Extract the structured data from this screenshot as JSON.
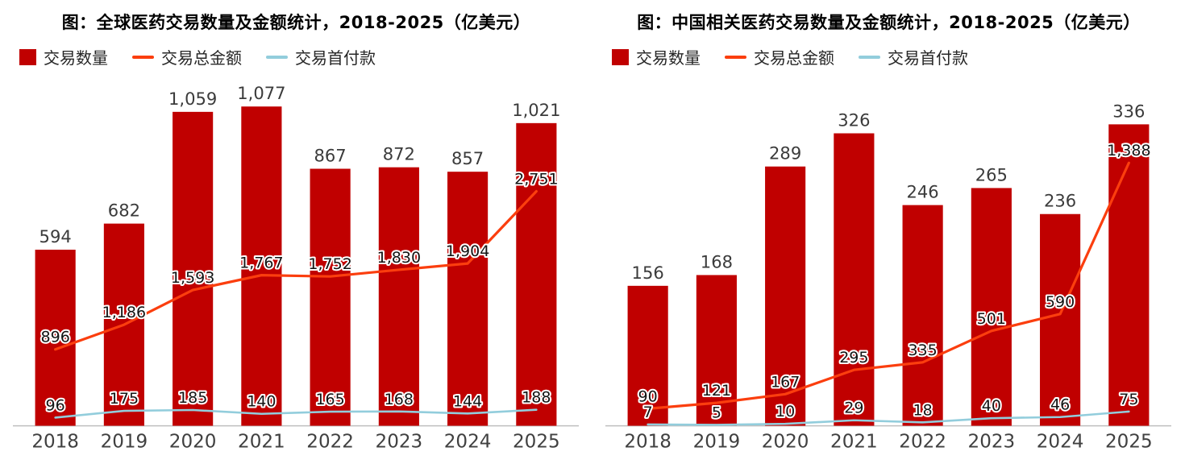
{
  "figure": {
    "background": "#ffffff"
  },
  "chart_data": [
    {
      "type": "bar-line-combo",
      "title": "图：全球医药交易数量及金额统计，2018-2025（亿美元）",
      "categories": [
        "2018",
        "2019",
        "2020",
        "2021",
        "2022",
        "2023",
        "2024",
        "2025"
      ],
      "series": [
        {
          "name": "交易数量",
          "type": "bar",
          "color": "#C00000",
          "values": [
            594,
            682,
            1059,
            1077,
            867,
            872,
            857,
            1021
          ]
        },
        {
          "name": "交易总金额",
          "type": "line",
          "color": "#FB3E0E",
          "values": [
            896,
            1186,
            1593,
            1767,
            1752,
            1830,
            1904,
            2751
          ]
        },
        {
          "name": "交易首付款",
          "type": "line",
          "color": "#92CDDC",
          "values": [
            96,
            175,
            185,
            140,
            165,
            168,
            144,
            188
          ]
        }
      ],
      "ylim": [
        0,
        1150
      ],
      "y2lim": [
        0,
        4000
      ],
      "legend_position": "top-left",
      "grid": false
    },
    {
      "type": "bar-line-combo",
      "title": "图：中国相关医药交易数量及金额统计，2018-2025（亿美元）",
      "categories": [
        "2018",
        "2019",
        "2020",
        "2021",
        "2022",
        "2023",
        "2024",
        "2025"
      ],
      "series": [
        {
          "name": "交易数量",
          "type": "bar",
          "color": "#C00000",
          "values": [
            156,
            168,
            289,
            326,
            246,
            265,
            236,
            336
          ]
        },
        {
          "name": "交易总金额",
          "type": "line",
          "color": "#FB3E0E",
          "values": [
            90,
            121,
            167,
            295,
            335,
            501,
            590,
            1388
          ]
        },
        {
          "name": "交易首付款",
          "type": "line",
          "color": "#92CDDC",
          "values": [
            7,
            5,
            10,
            29,
            18,
            40,
            46,
            75
          ]
        }
      ],
      "ylim": [
        0,
        380
      ],
      "y2lim": [
        0,
        1800
      ],
      "legend_position": "top-left",
      "grid": false
    }
  ]
}
